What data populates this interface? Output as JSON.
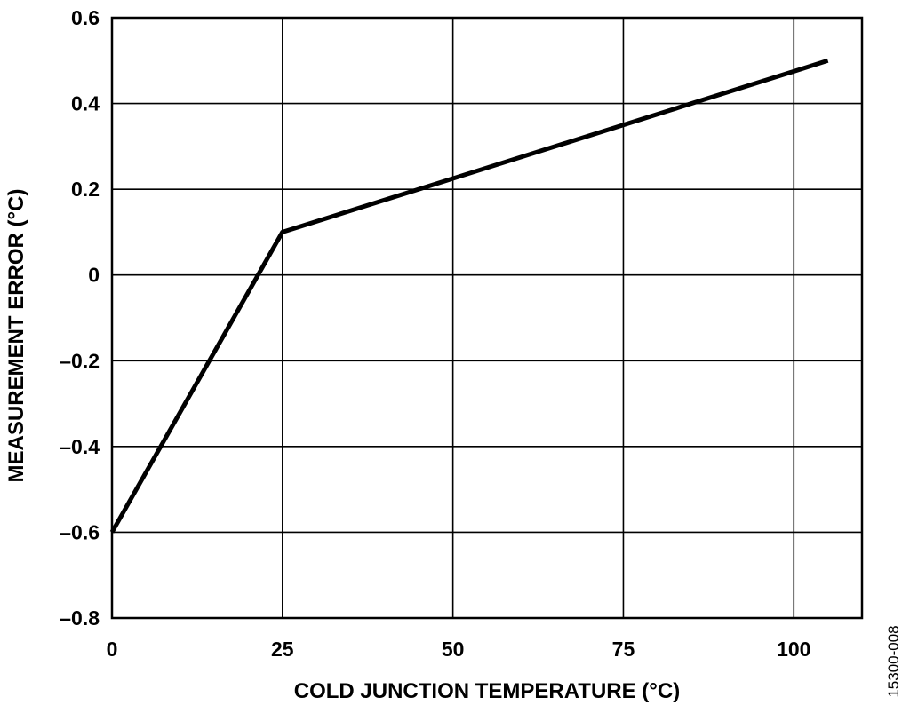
{
  "chart_data": {
    "type": "line",
    "xlabel": "COLD JUNCTION TEMPERATURE (°C)",
    "ylabel": "MEASUREMENT ERROR (°C)",
    "xlim": [
      0,
      110
    ],
    "ylim": [
      -0.8,
      0.6
    ],
    "x_ticks": [
      0,
      25,
      50,
      75,
      100
    ],
    "x_tick_labels": [
      "0",
      "25",
      "50",
      "75",
      "100"
    ],
    "y_ticks": [
      0.6,
      0.4,
      0.2,
      0,
      -0.2,
      -0.4,
      -0.6,
      -0.8
    ],
    "y_tick_labels": [
      "0.6",
      "0.4",
      "0.2",
      "0",
      "–0.2",
      "–0.4",
      "–0.6",
      "–0.8"
    ],
    "grid": true,
    "series": [
      {
        "x": [
          0,
          25,
          105
        ],
        "y": [
          -0.6,
          0.1,
          0.5
        ],
        "color": "#000000"
      }
    ]
  },
  "figure_id": "15300-008"
}
